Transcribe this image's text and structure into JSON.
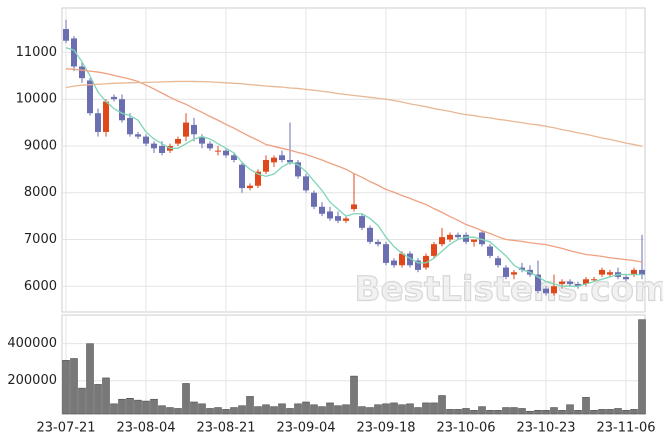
{
  "chart_data": {
    "type": "candlestick",
    "watermark": "BestListens.com",
    "categories": [
      "23-07-21",
      null,
      null,
      null,
      null,
      null,
      null,
      null,
      null,
      null,
      "23-08-04",
      null,
      null,
      null,
      null,
      null,
      null,
      null,
      null,
      null,
      "23-08-21",
      null,
      null,
      null,
      null,
      null,
      null,
      null,
      null,
      null,
      "23-09-04",
      null,
      null,
      null,
      null,
      null,
      null,
      null,
      null,
      null,
      "23-09-18",
      null,
      null,
      null,
      null,
      null,
      null,
      null,
      null,
      null,
      "23-10-06",
      null,
      null,
      null,
      null,
      null,
      null,
      null,
      null,
      null,
      "23-10-23",
      null,
      null,
      null,
      null,
      null,
      null,
      null,
      null,
      null,
      "23-11-06",
      null,
      null
    ],
    "open": [
      11500,
      11300,
      10700,
      10400,
      9700,
      9300,
      10050,
      10000,
      9600,
      9250,
      9200,
      9050,
      9000,
      8900,
      9050,
      9200,
      9450,
      9200,
      9050,
      8900,
      8900,
      8800,
      8600,
      8100,
      8150,
      8450,
      8650,
      8800,
      8700,
      8650,
      8350,
      8000,
      7700,
      7600,
      7500,
      7400,
      7650,
      7500,
      7250,
      6950,
      6900,
      6550,
      6450,
      6700,
      6550,
      6400,
      6650,
      6900,
      7000,
      7100,
      7100,
      6950,
      7150,
      6850,
      6600,
      6400,
      6250,
      6400,
      6350,
      6250,
      5950,
      5850,
      6050,
      6100,
      6050,
      6050,
      6150,
      6250,
      6250,
      6300,
      6200,
      6250,
      6350
    ],
    "high": [
      11700,
      11350,
      10800,
      10450,
      9800,
      10000,
      10100,
      10100,
      9700,
      9300,
      9250,
      9100,
      9100,
      9050,
      9200,
      9700,
      9600,
      9250,
      9100,
      9000,
      8950,
      8850,
      8650,
      8200,
      8500,
      8800,
      8800,
      8900,
      9500,
      8700,
      8400,
      8050,
      7800,
      7700,
      7600,
      7500,
      8400,
      7550,
      7300,
      7000,
      6950,
      6600,
      6750,
      6750,
      6600,
      6700,
      6950,
      7250,
      7150,
      7150,
      7150,
      7000,
      7200,
      6900,
      6650,
      6450,
      6350,
      6500,
      6450,
      6550,
      6000,
      6250,
      6150,
      6150,
      6100,
      6200,
      6200,
      6400,
      6350,
      6400,
      6250,
      6400,
      7100
    ],
    "low": [
      11200,
      10600,
      10350,
      9650,
      9200,
      9200,
      9950,
      9500,
      9200,
      9150,
      9000,
      8850,
      8800,
      8850,
      9000,
      9100,
      9100,
      8950,
      8900,
      8800,
      8750,
      8650,
      8000,
      8050,
      8100,
      8400,
      8550,
      8650,
      8600,
      8300,
      8000,
      7650,
      7500,
      7400,
      7350,
      7350,
      7600,
      7200,
      6900,
      6850,
      6450,
      6400,
      6400,
      6400,
      6300,
      6350,
      6600,
      6850,
      6950,
      7000,
      6900,
      6850,
      6850,
      6600,
      6400,
      6150,
      6150,
      6300,
      6200,
      5850,
      5800,
      5800,
      5950,
      6000,
      5950,
      6000,
      6100,
      6200,
      6200,
      6150,
      6100,
      6200,
      6150
    ],
    "close": [
      11250,
      10700,
      10450,
      9700,
      9300,
      9950,
      10000,
      9550,
      9250,
      9200,
      9050,
      8950,
      8850,
      9000,
      9150,
      9500,
      9250,
      9050,
      8950,
      8900,
      8800,
      8700,
      8100,
      8150,
      8450,
      8700,
      8750,
      8700,
      8650,
      8350,
      8050,
      7700,
      7550,
      7450,
      7400,
      7450,
      7750,
      7250,
      6950,
      6900,
      6500,
      6450,
      6700,
      6450,
      6350,
      6650,
      6900,
      7050,
      7100,
      7050,
      6950,
      7000,
      6900,
      6650,
      6450,
      6200,
      6300,
      6350,
      6250,
      5900,
      5850,
      6000,
      6100,
      6050,
      6000,
      6150,
      6150,
      6350,
      6300,
      6200,
      6150,
      6350,
      6250
    ],
    "up_color": "#e0481b",
    "down_color": "#6b6fb1",
    "series": [
      {
        "color": "#7fd6b8",
        "values": [
          11100,
          11050,
          10800,
          10500,
          10150,
          9950,
          9800,
          9700,
          9650,
          9550,
          9300,
          9150,
          9050,
          8950,
          8950,
          9050,
          9150,
          9200,
          9150,
          9050,
          8950,
          8850,
          8650,
          8500,
          8400,
          8350,
          8400,
          8550,
          8650,
          8600,
          8450,
          8250,
          8050,
          7800,
          7650,
          7500,
          7550,
          7550,
          7450,
          7300,
          7050,
          6850,
          6700,
          6600,
          6500,
          6500,
          6600,
          6750,
          6900,
          7000,
          7050,
          7050,
          7000,
          6950,
          6800,
          6650,
          6450,
          6350,
          6300,
          6200,
          6100,
          6050,
          6000,
          6000,
          6000,
          6050,
          6100,
          6150,
          6200,
          6250,
          6250,
          6250,
          6250
        ]
      },
      {
        "color": "#f0a080",
        "values": [
          10650,
          10640,
          10620,
          10600,
          10580,
          10550,
          10510,
          10470,
          10430,
          10380,
          10300,
          10220,
          10130,
          10040,
          9960,
          9890,
          9800,
          9720,
          9630,
          9550,
          9460,
          9380,
          9290,
          9200,
          9120,
          9030,
          8990,
          8950,
          8910,
          8860,
          8820,
          8760,
          8700,
          8630,
          8570,
          8500,
          8410,
          8330,
          8240,
          8160,
          8070,
          8010,
          7940,
          7880,
          7810,
          7750,
          7660,
          7580,
          7490,
          7410,
          7320,
          7260,
          7190,
          7130,
          7060,
          7000,
          6980,
          6960,
          6930,
          6910,
          6890,
          6850,
          6810,
          6760,
          6720,
          6680,
          6660,
          6640,
          6610,
          6590,
          6570,
          6550,
          6520
        ]
      },
      {
        "color": "#e8b894",
        "values": [
          10250,
          10280,
          10300,
          10310,
          10320,
          10330,
          10340,
          10345,
          10350,
          10355,
          10360,
          10365,
          10370,
          10375,
          10380,
          10380,
          10380,
          10375,
          10370,
          10360,
          10350,
          10340,
          10330,
          10310,
          10300,
          10280,
          10270,
          10260,
          10240,
          10230,
          10210,
          10190,
          10170,
          10150,
          10120,
          10100,
          10080,
          10060,
          10040,
          10020,
          10000,
          9970,
          9940,
          9900,
          9870,
          9840,
          9800,
          9770,
          9740,
          9700,
          9670,
          9650,
          9620,
          9600,
          9570,
          9550,
          9520,
          9500,
          9470,
          9450,
          9420,
          9390,
          9350,
          9320,
          9280,
          9250,
          9210,
          9170,
          9140,
          9100,
          9060,
          9030,
          8990
        ]
      }
    ],
    "ylim": [
      5450,
      11950
    ],
    "yticks": [
      6000,
      7000,
      8000,
      9000,
      10000,
      11000
    ],
    "volume": [
      310000,
      320000,
      160000,
      400000,
      180000,
      215000,
      75000,
      100000,
      105000,
      95000,
      90000,
      100000,
      65000,
      55000,
      50000,
      185000,
      85000,
      75000,
      50000,
      55000,
      45000,
      55000,
      65000,
      115000,
      60000,
      70000,
      60000,
      75000,
      50000,
      75000,
      85000,
      70000,
      60000,
      80000,
      65000,
      70000,
      225000,
      60000,
      55000,
      70000,
      75000,
      80000,
      70000,
      75000,
      55000,
      80000,
      80000,
      120000,
      45000,
      45000,
      50000,
      40000,
      60000,
      40000,
      40000,
      55000,
      55000,
      50000,
      35000,
      40000,
      40000,
      55000,
      40000,
      70000,
      40000,
      110000,
      40000,
      45000,
      45000,
      50000,
      40000,
      45000,
      530000
    ],
    "volume_color": "#787878",
    "volume_ylim": [
      20000,
      555000
    ],
    "volume_yticks": [
      200000,
      400000
    ],
    "grid": true
  }
}
